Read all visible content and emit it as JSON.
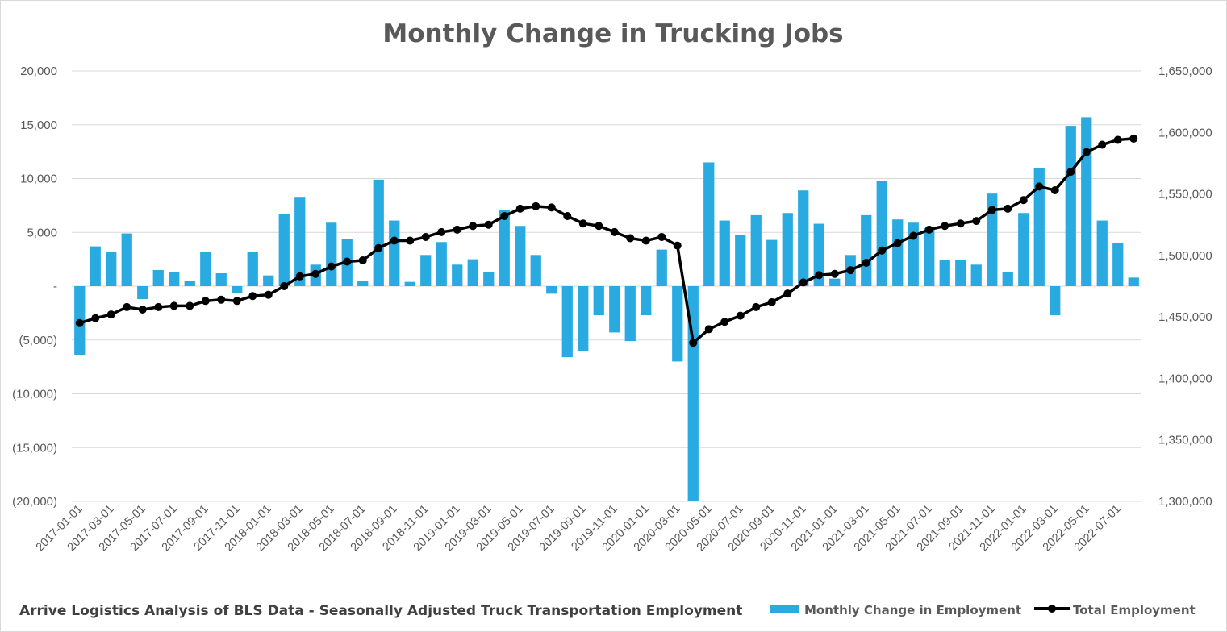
{
  "chart_data": {
    "type": "bar+line",
    "title": "Monthly Change in Trucking Jobs",
    "footer": "Arrive Logistics Analysis of BLS Data - Seasonally Adjusted Truck Transportation  Employment",
    "x_tick_labels": [
      "2017-01-01",
      "2017-03-01",
      "2017-05-01",
      "2017-07-01",
      "2017-09-01",
      "2017-11-01",
      "2018-01-01",
      "2018-03-01",
      "2018-05-01",
      "2018-07-01",
      "2018-09-01",
      "2018-11-01",
      "2019-01-01",
      "2019-03-01",
      "2019-05-01",
      "2019-07-01",
      "2019-09-01",
      "2019-11-01",
      "2020-01-01",
      "2020-03-01",
      "2020-05-01",
      "2020-07-01",
      "2020-09-01",
      "2020-11-01",
      "2021-01-01",
      "2021-03-01",
      "2021-05-01",
      "2021-07-01",
      "2021-09-01",
      "2021-11-01",
      "2022-01-01",
      "2022-03-01",
      "2022-05-01",
      "2022-07-01"
    ],
    "y_left": {
      "range": [
        -20000,
        20000
      ],
      "ticks": [
        20000,
        15000,
        10000,
        5000,
        0,
        -5000,
        -10000,
        -15000,
        -20000
      ],
      "tick_labels": [
        "20,000",
        "15,000",
        "10,000",
        "5,000",
        "-",
        "(5,000)",
        "(10,000)",
        "(15,000)",
        "(20,000)"
      ]
    },
    "y_right": {
      "range": [
        1300000,
        1650000
      ],
      "ticks": [
        1650000,
        1600000,
        1550000,
        1500000,
        1450000,
        1400000,
        1350000,
        1300000
      ],
      "tick_labels": [
        "1,650,000",
        "1,600,000",
        "1,550,000",
        "1,500,000",
        "1,450,000",
        "1,400,000",
        "1,350,000",
        "1,300,000"
      ]
    },
    "grid": true,
    "legend_position": "bottom-right",
    "series": [
      {
        "name": "Monthly Change in Employment",
        "type": "bar",
        "axis": "left",
        "color": "#29abe2",
        "values": [
          -6400,
          3700,
          3200,
          4900,
          -1200,
          1500,
          1300,
          500,
          3200,
          1200,
          -600,
          3200,
          1000,
          6700,
          8300,
          2000,
          5900,
          4400,
          500,
          9900,
          6100,
          400,
          2900,
          4100,
          2000,
          2500,
          1300,
          7100,
          5600,
          2900,
          -700,
          -6600,
          -6000,
          -2700,
          -4300,
          -5100,
          -2700,
          3400,
          -7000,
          -20000,
          11500,
          6100,
          4800,
          6600,
          4300,
          6800,
          8900,
          5800,
          700,
          2900,
          6600,
          9800,
          6200,
          5900,
          5400,
          2400,
          2400,
          2000,
          8600,
          1300,
          6800,
          11000,
          -2700,
          14900,
          15700,
          6100,
          4000,
          800
        ]
      },
      {
        "name": "Total Employment",
        "type": "line",
        "axis": "right",
        "color": "#000000",
        "values": [
          1445000,
          1449000,
          1452000,
          1458000,
          1456000,
          1458000,
          1459000,
          1459000,
          1463000,
          1464000,
          1463000,
          1467000,
          1468000,
          1475000,
          1483000,
          1485000,
          1491000,
          1495000,
          1496000,
          1506000,
          1512000,
          1512000,
          1515000,
          1519000,
          1521000,
          1524000,
          1525000,
          1532000,
          1538000,
          1540000,
          1539000,
          1532000,
          1526000,
          1524000,
          1519000,
          1514000,
          1512000,
          1515000,
          1508000,
          1429000,
          1440000,
          1446000,
          1451000,
          1458000,
          1462000,
          1469000,
          1478000,
          1484000,
          1485000,
          1488000,
          1494000,
          1504000,
          1510000,
          1516000,
          1521000,
          1524000,
          1526000,
          1528000,
          1537000,
          1538000,
          1545000,
          1556000,
          1553000,
          1568000,
          1584000,
          1590000,
          1594000,
          1595000
        ]
      }
    ]
  }
}
